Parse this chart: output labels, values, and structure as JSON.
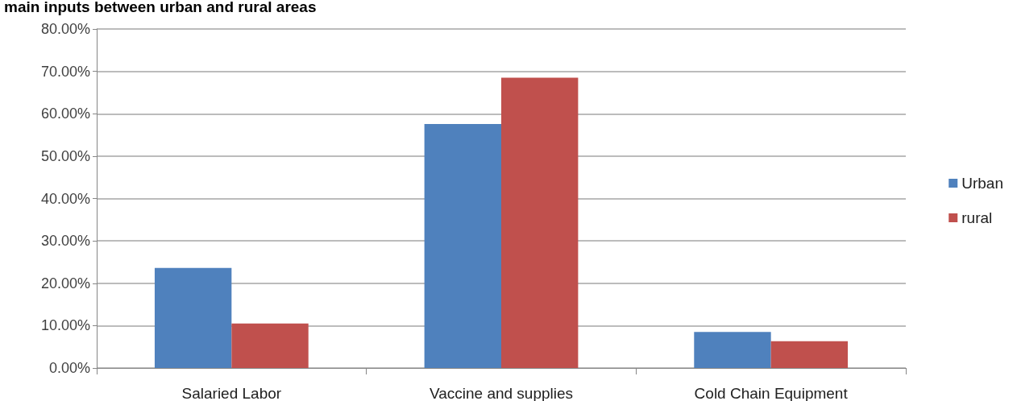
{
  "chart_data": {
    "type": "bar",
    "title": "main inputs between urban and rural areas",
    "categories": [
      "Salaried Labor",
      "Vaccine and supplies",
      "Cold Chain Equipment"
    ],
    "series": [
      {
        "name": "Urban",
        "color": "#4f81bd",
        "values": [
          23.6,
          57.6,
          8.5
        ]
      },
      {
        "name": "rural",
        "color": "#c0504d",
        "values": [
          10.5,
          68.5,
          6.3
        ]
      }
    ],
    "ylim": [
      0,
      80
    ],
    "yticks": [
      {
        "value": 0,
        "label": "0.00%"
      },
      {
        "value": 10,
        "label": "10.00%"
      },
      {
        "value": 20,
        "label": "20.00%"
      },
      {
        "value": 30,
        "label": "30.00%"
      },
      {
        "value": 40,
        "label": "40.00%"
      },
      {
        "value": 50,
        "label": "50.00%"
      },
      {
        "value": 60,
        "label": "60.00%"
      },
      {
        "value": 70,
        "label": "70.00%"
      },
      {
        "value": 80,
        "label": "80.00%"
      }
    ],
    "grid": "y",
    "legend": "right"
  }
}
